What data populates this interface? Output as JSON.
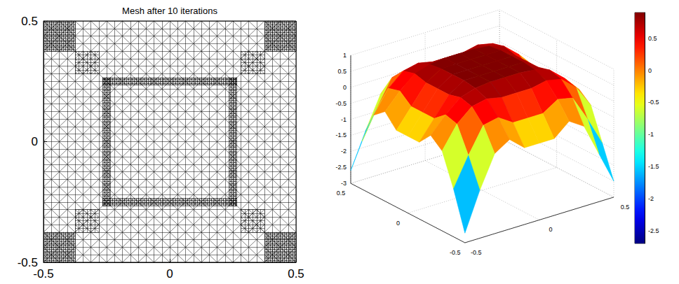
{
  "chart_data": [
    {
      "type": "mesh",
      "title": "Mesh after 10 iterations",
      "xlim": [
        -0.5,
        0.5
      ],
      "ylim": [
        -0.5,
        0.5
      ],
      "xticks": [
        -0.5,
        0,
        0.5
      ],
      "yticks": [
        -0.5,
        0,
        0.5
      ],
      "color": "#000000",
      "regions": [
        {
          "x": [
            -0.5,
            0.5
          ],
          "y": [
            -0.5,
            0.5
          ],
          "h": 0.03125
        },
        {
          "x": [
            -0.5,
            -0.375
          ],
          "y": [
            -0.5,
            -0.375
          ],
          "h": 0.0078125
        },
        {
          "x": [
            0.375,
            0.5
          ],
          "y": [
            -0.5,
            -0.375
          ],
          "h": 0.0078125
        },
        {
          "x": [
            -0.5,
            -0.375
          ],
          "y": [
            0.375,
            0.5
          ],
          "h": 0.0078125
        },
        {
          "x": [
            0.375,
            0.5
          ],
          "y": [
            0.375,
            0.5
          ],
          "h": 0.0078125
        },
        {
          "x": [
            -0.375,
            -0.28125
          ],
          "y": [
            -0.375,
            -0.28125
          ],
          "h": 0.015625
        },
        {
          "x": [
            0.28125,
            0.375
          ],
          "y": [
            -0.375,
            -0.28125
          ],
          "h": 0.015625
        },
        {
          "x": [
            -0.375,
            -0.28125
          ],
          "y": [
            0.28125,
            0.375
          ],
          "h": 0.015625
        },
        {
          "x": [
            0.28125,
            0.375
          ],
          "y": [
            0.28125,
            0.375
          ],
          "h": 0.015625
        },
        {
          "x": [
            -0.265625,
            -0.234375
          ],
          "y": [
            -0.265625,
            0.265625
          ],
          "h": 0.0078125
        },
        {
          "x": [
            0.234375,
            0.265625
          ],
          "y": [
            -0.265625,
            0.265625
          ],
          "h": 0.0078125
        },
        {
          "x": [
            -0.265625,
            0.265625
          ],
          "y": [
            -0.265625,
            -0.234375
          ],
          "h": 0.0078125
        },
        {
          "x": [
            -0.265625,
            0.265625
          ],
          "y": [
            0.234375,
            0.265625
          ],
          "h": 0.0078125
        }
      ]
    },
    {
      "type": "surface",
      "xlim": [
        -0.5,
        0.5
      ],
      "ylim": [
        -0.5,
        0.5
      ],
      "zlim": [
        -3,
        1
      ],
      "xticks": [
        -0.5,
        0,
        0.5
      ],
      "yticks": [
        -0.5,
        0,
        0.5
      ],
      "zticks": [
        -3,
        -2.5,
        -2,
        -1.5,
        -1,
        -0.5,
        0,
        0.5,
        1
      ],
      "grid": true,
      "x": [
        -0.5,
        -0.4,
        -0.3,
        -0.2,
        -0.1,
        0,
        0.1,
        0.2,
        0.3,
        0.4,
        0.5
      ],
      "y": [
        -0.5,
        -0.4,
        -0.3,
        -0.2,
        -0.1,
        0,
        0.1,
        0.2,
        0.3,
        0.4,
        0.5
      ],
      "z": [
        [
          -2.7,
          -1.5,
          -0.5,
          -0.2,
          -0.6,
          -0.6,
          -0.6,
          -0.2,
          -0.5,
          -1.5,
          -2.5
        ],
        [
          -1.5,
          -0.6,
          0.2,
          0.3,
          0.0,
          0.0,
          0.0,
          0.3,
          0.2,
          -0.6,
          -1.5
        ],
        [
          -0.5,
          0.2,
          0.6,
          0.7,
          0.6,
          0.6,
          0.6,
          0.7,
          0.6,
          0.2,
          -0.5
        ],
        [
          -0.2,
          0.3,
          0.7,
          0.85,
          0.9,
          0.9,
          0.9,
          0.85,
          0.7,
          0.3,
          -0.2
        ],
        [
          -0.6,
          0.0,
          0.6,
          0.9,
          0.9,
          0.9,
          0.9,
          0.9,
          0.6,
          0.0,
          -0.6
        ],
        [
          -0.6,
          0.0,
          0.6,
          0.9,
          0.9,
          0.9,
          0.9,
          0.9,
          0.6,
          0.0,
          -0.6
        ],
        [
          -0.6,
          0.0,
          0.6,
          0.9,
          0.9,
          0.9,
          0.9,
          0.9,
          0.6,
          0.0,
          -0.6
        ],
        [
          -0.2,
          0.3,
          0.7,
          0.85,
          0.9,
          0.9,
          0.9,
          0.85,
          0.7,
          0.3,
          -0.2
        ],
        [
          -0.5,
          0.2,
          0.6,
          0.7,
          0.6,
          0.6,
          0.6,
          0.7,
          0.6,
          0.2,
          -0.5
        ],
        [
          -1.5,
          -0.6,
          0.2,
          0.3,
          0.0,
          0.0,
          0.0,
          0.3,
          0.2,
          -0.6,
          -1.5
        ],
        [
          -2.6,
          -1.5,
          -0.5,
          -0.2,
          -0.6,
          -0.6,
          -0.6,
          -0.2,
          -0.5,
          -1.5,
          -2.6
        ]
      ],
      "colorbar": {
        "lim": [
          -2.7,
          0.9
        ],
        "ticks": [
          -2.5,
          -2,
          -1.5,
          -1,
          -0.5,
          0,
          0.5
        ]
      }
    }
  ]
}
